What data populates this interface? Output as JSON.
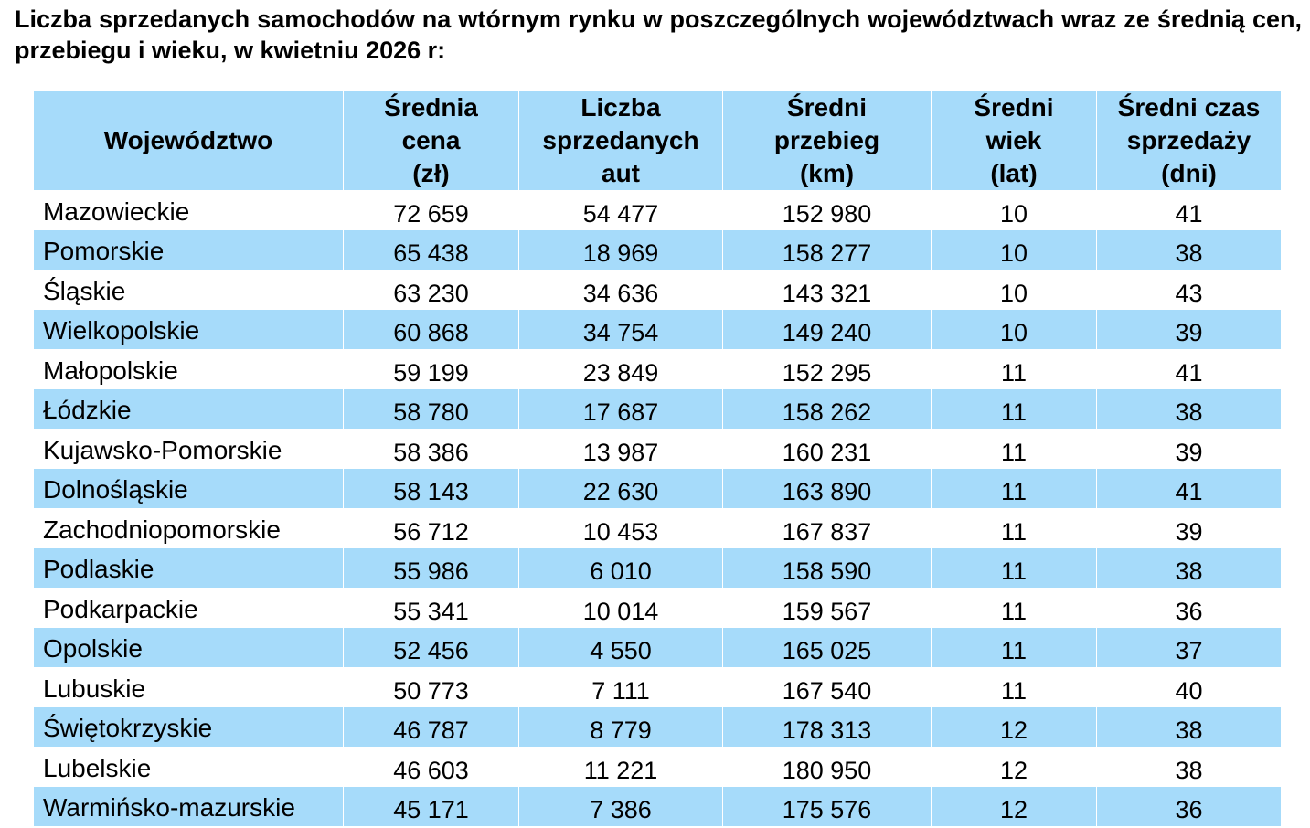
{
  "title": "Liczba sprzedanych samochodów na wtórnym rynku w poszczególnych województwach wraz ze średnią cen, przebiegu i wieku, w kwietniu 2026 r:",
  "colors": {
    "header_bg": "#a6dbfa",
    "stripe_bg": "#a6dbfa",
    "plain_bg": "#ffffff"
  },
  "table": {
    "headers": [
      [
        "Województwo"
      ],
      [
        "Średnia",
        "cena",
        "(zł)"
      ],
      [
        "Liczba",
        "sprzedanych",
        "aut"
      ],
      [
        "Średni",
        "przebieg",
        "(km)"
      ],
      [
        "Średni",
        "wiek",
        "(lat)"
      ],
      [
        "Średni czas",
        "sprzedaży",
        "(dni)"
      ]
    ],
    "rows": [
      [
        "Mazowieckie",
        "72 659",
        "54 477",
        "152 980",
        "10",
        "41"
      ],
      [
        "Pomorskie",
        "65 438",
        "18 969",
        "158 277",
        "10",
        "38"
      ],
      [
        "Śląskie",
        "63 230",
        "34 636",
        "143 321",
        "10",
        "43"
      ],
      [
        "Wielkopolskie",
        "60 868",
        "34 754",
        "149 240",
        "10",
        "39"
      ],
      [
        "Małopolskie",
        "59 199",
        "23 849",
        "152 295",
        "11",
        "41"
      ],
      [
        "Łódzkie",
        "58 780",
        "17 687",
        "158 262",
        "11",
        "38"
      ],
      [
        "Kujawsko-Pomorskie",
        "58 386",
        "13 987",
        "160 231",
        "11",
        "39"
      ],
      [
        "Dolnośląskie",
        "58 143",
        "22 630",
        "163 890",
        "11",
        "41"
      ],
      [
        "Zachodniopomorskie",
        "56 712",
        "10 453",
        "167 837",
        "11",
        "39"
      ],
      [
        "Podlaskie",
        "55 986",
        "6 010",
        "158 590",
        "11",
        "38"
      ],
      [
        "Podkarpackie",
        "55 341",
        "10 014",
        "159 567",
        "11",
        "36"
      ],
      [
        "Opolskie",
        "52 456",
        "4 550",
        "165 025",
        "11",
        "37"
      ],
      [
        "Lubuskie",
        "50 773",
        "7 111",
        "167 540",
        "11",
        "40"
      ],
      [
        "Świętokrzyskie",
        "46 787",
        "8 779",
        "178 313",
        "12",
        "38"
      ],
      [
        "Lubelskie",
        "46 603",
        "11 221",
        "180 950",
        "12",
        "38"
      ],
      [
        "Warmińsko-mazurskie",
        "45 171",
        "7 386",
        "175 576",
        "12",
        "36"
      ]
    ]
  }
}
